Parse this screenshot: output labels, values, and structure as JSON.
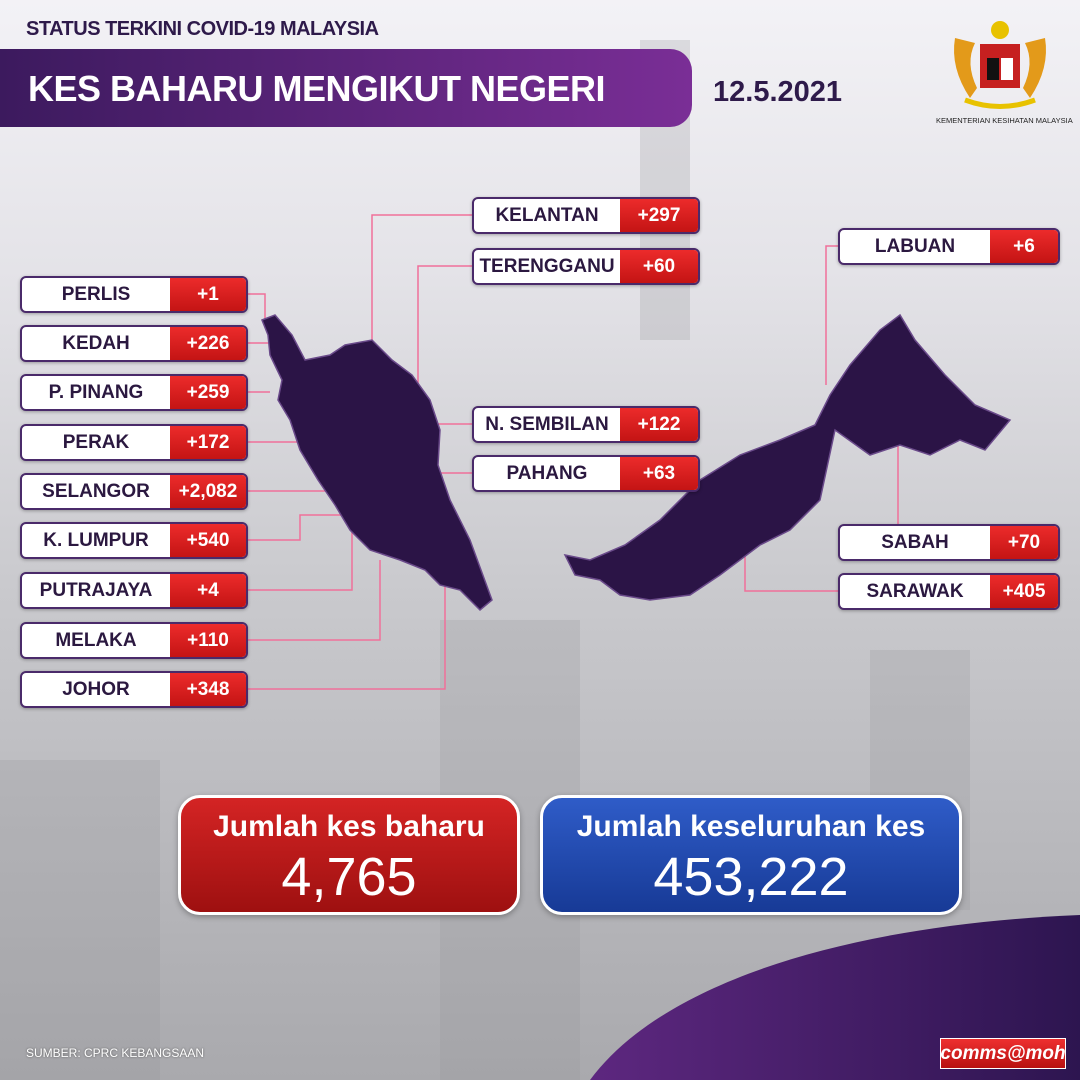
{
  "header": {
    "subtitle": "STATUS TERKINI COVID-19 MALAYSIA",
    "title": "KES BAHARU MENGIKUT NEGERI",
    "date": "12.5.2021",
    "ministry": "KEMENTERIAN KESIHATAN MALAYSIA"
  },
  "states_left": [
    {
      "name": "PERLIS",
      "cases": "+1"
    },
    {
      "name": "KEDAH",
      "cases": "+226"
    },
    {
      "name": "P. PINANG",
      "cases": "+259"
    },
    {
      "name": "PERAK",
      "cases": "+172"
    },
    {
      "name": "SELANGOR",
      "cases": "+2,082"
    },
    {
      "name": "K. LUMPUR",
      "cases": "+540"
    },
    {
      "name": "PUTRAJAYA",
      "cases": "+4"
    },
    {
      "name": "MELAKA",
      "cases": "+110"
    },
    {
      "name": "JOHOR",
      "cases": "+348"
    }
  ],
  "states_mid": [
    {
      "name": "KELANTAN",
      "cases": "+297"
    },
    {
      "name": "TERENGGANU",
      "cases": "+60"
    },
    {
      "name": "N. SEMBILAN",
      "cases": "+122"
    },
    {
      "name": "PAHANG",
      "cases": "+63"
    }
  ],
  "states_right": [
    {
      "name": "LABUAN",
      "cases": "+6"
    },
    {
      "name": "SABAH",
      "cases": "+70"
    },
    {
      "name": "SARAWAK",
      "cases": "+405"
    }
  ],
  "totals": {
    "new_label": "Jumlah kes baharu",
    "new_value": "4,765",
    "cumulative_label": "Jumlah keseluruhan kes",
    "cumulative_value": "453,222"
  },
  "footer": {
    "source": "SUMBER: CPRC KEBANGSAAN",
    "brand": "comms@moh"
  },
  "colors": {
    "purple": "#3c1a5e",
    "red": "#d41c1c",
    "blue": "#1f48b0",
    "map": "#2b1446"
  }
}
